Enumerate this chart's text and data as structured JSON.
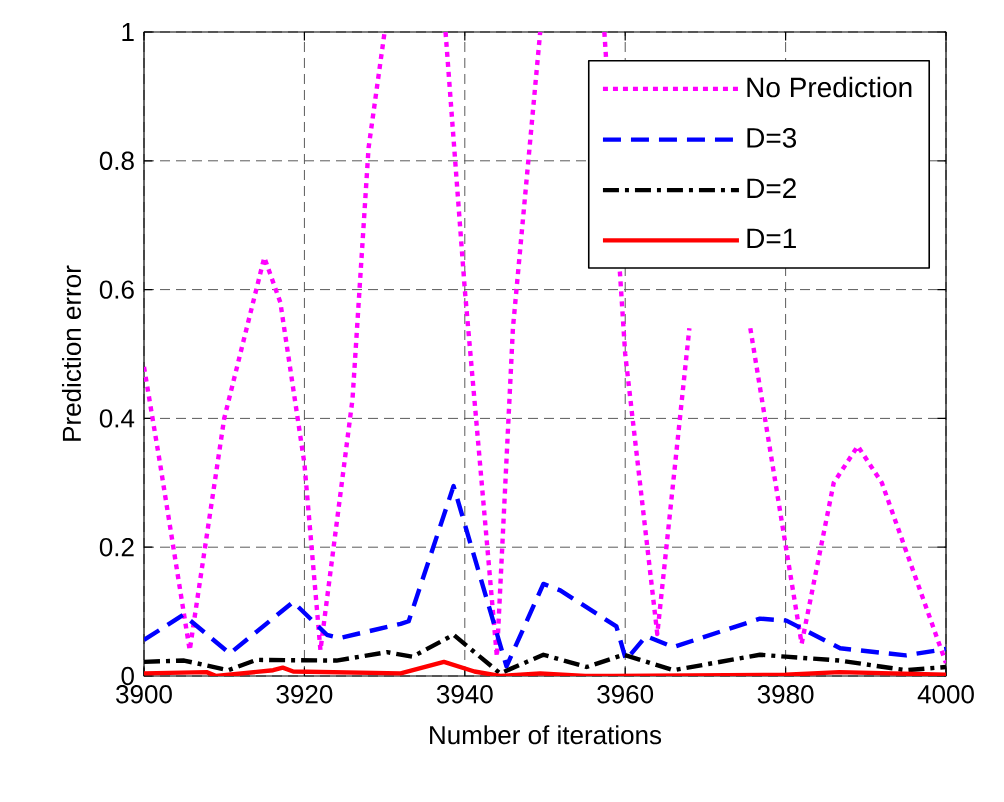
{
  "chart_data": {
    "type": "line",
    "xlabel": "Number of iterations",
    "ylabel": "Prediction error",
    "xlim": [
      3900,
      4000
    ],
    "ylim": [
      0,
      1
    ],
    "xticks": [
      3900,
      3920,
      3940,
      3960,
      3980,
      4000
    ],
    "yticks": [
      0,
      {
        "value": 0.2,
        "label": "0.2"
      },
      {
        "value": 0.4,
        "label": "0.4"
      },
      {
        "value": 0.6,
        "label": "0.6"
      },
      {
        "value": 0.8,
        "label": "0.8"
      },
      1
    ],
    "grid": true,
    "legend": "top right",
    "series": [
      {
        "name": "No Prediction",
        "color": "#ff00ff",
        "line_style": "dotted",
        "x": [
          3900,
          3902,
          3905.7,
          3910,
          3915,
          3917,
          3920,
          3922,
          3926,
          3928,
          3930,
          3934,
          3937.6,
          3940,
          3944,
          3946,
          3949.4,
          3953,
          3957.4,
          3960,
          3964,
          3968,
          3972,
          3975.6,
          3982,
          3986,
          3989,
          3992,
          4000
        ],
        "values": [
          0.48,
          0.33,
          0.04,
          0.4,
          0.65,
          0.58,
          0.33,
          0.04,
          0.43,
          0.82,
          1,
          null,
          1,
          0.6,
          0.03,
          0.54,
          1,
          null,
          1,
          0.5,
          0.065,
          0.54,
          null,
          0.54,
          0.05,
          0.3,
          0.357,
          0.3,
          0.02
        ]
      },
      {
        "name": "D=3",
        "color": "#0000ff",
        "line_style": "dashed",
        "x": [
          3900,
          3904.9,
          3910.7,
          3918.6,
          3922.8,
          3924.4,
          3932,
          3933,
          3938.6,
          3945.2,
          3949.8,
          3951.9,
          3958.9,
          3960.1,
          3962.6,
          3966,
          3976.8,
          3980.1,
          3986.8,
          3995,
          4000
        ],
        "values": [
          0.056,
          0.095,
          0.035,
          0.115,
          0.064,
          0.059,
          0.081,
          0.085,
          0.295,
          0.015,
          0.143,
          0.133,
          0.077,
          0.025,
          0.062,
          0.045,
          0.089,
          0.086,
          0.043,
          0.032,
          0.042
        ]
      },
      {
        "name": "D=2",
        "color": "#000000",
        "line_style": "dashdot",
        "x": [
          3900,
          3905,
          3910.5,
          3914,
          3924,
          3930.3,
          3933.5,
          3938.6,
          3944.4,
          3949.8,
          3955.2,
          3959.8,
          3966,
          3976.8,
          3980,
          3986.7,
          3995,
          4000
        ],
        "values": [
          0.022,
          0.024,
          0.009,
          0.025,
          0.024,
          0.037,
          0.03,
          0.064,
          0.004,
          0.033,
          0.014,
          0.033,
          0.009,
          0.033,
          0.03,
          0.024,
          0.009,
          0.014
        ]
      },
      {
        "name": "D=1",
        "color": "#ff0000",
        "line_style": "solid",
        "x": [
          3900,
          3907.8,
          3909,
          3916.1,
          3917.3,
          3918.6,
          3932,
          3937.4,
          3941.2,
          3944.4,
          3949.4,
          3955,
          3958.5,
          3980,
          3986.7,
          4000
        ],
        "values": [
          0.004,
          0.006,
          0,
          0.009,
          0.013,
          0.007,
          0.004,
          0.022,
          0.007,
          0,
          0.004,
          0,
          0,
          0.002,
          0.006,
          0.002
        ]
      }
    ]
  }
}
